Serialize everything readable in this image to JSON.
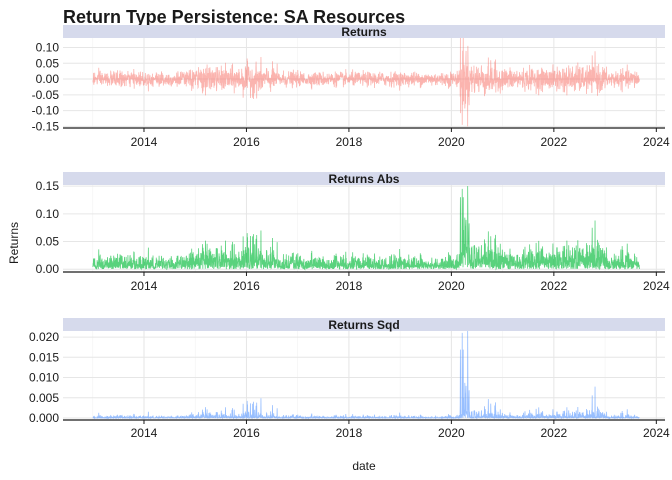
{
  "chart_data": {
    "type": "line",
    "title": "Return Type Persistence: SA Resources",
    "xlabel": "date",
    "ylabel": "Returns",
    "x_range": [
      "2013-01-01",
      "2023-09-01"
    ],
    "x_axis_limits": [
      "2012-06-01",
      "2024-03-01"
    ],
    "x_ticks": [
      "2014",
      "2016",
      "2018",
      "2020",
      "2022",
      "2024"
    ],
    "grid": true,
    "strip_color": "#d6daec",
    "panels": [
      {
        "name": "Returns",
        "color": "#f8766d",
        "ylim": [
          -0.155,
          0.13
        ],
        "y_ticks": [
          "0.10",
          "0.05",
          "0.00",
          "-0.05",
          "-0.10",
          "-0.15"
        ],
        "y_tick_values": [
          0.1,
          0.05,
          0.0,
          -0.05,
          -0.1,
          -0.15
        ],
        "annotated_extremes": [
          {
            "date": "2020-03-16",
            "value": -0.145
          },
          {
            "date": "2020-03-24",
            "value": 0.13
          }
        ]
      },
      {
        "name": "Returns  Abs",
        "color": "#00ba38",
        "ylim": [
          -0.005,
          0.152
        ],
        "y_ticks": [
          "0.15",
          "0.10",
          "0.05",
          "0.00"
        ],
        "y_tick_values": [
          0.15,
          0.1,
          0.05,
          0.0
        ],
        "annotated_extremes": [
          {
            "date": "2020-03-16",
            "value": 0.145
          },
          {
            "date": "2022-10-20",
            "value": 0.088
          }
        ]
      },
      {
        "name": "Returns  Sqd",
        "color": "#619cff",
        "ylim": [
          -0.0005,
          0.0215
        ],
        "y_ticks": [
          "0.020",
          "0.015",
          "0.010",
          "0.005",
          "0.000"
        ],
        "y_tick_values": [
          0.02,
          0.015,
          0.01,
          0.005,
          0.0
        ],
        "annotated_extremes": [
          {
            "date": "2020-03-16",
            "value": 0.021
          },
          {
            "date": "2022-10-20",
            "value": 0.0078
          }
        ]
      }
    ]
  }
}
